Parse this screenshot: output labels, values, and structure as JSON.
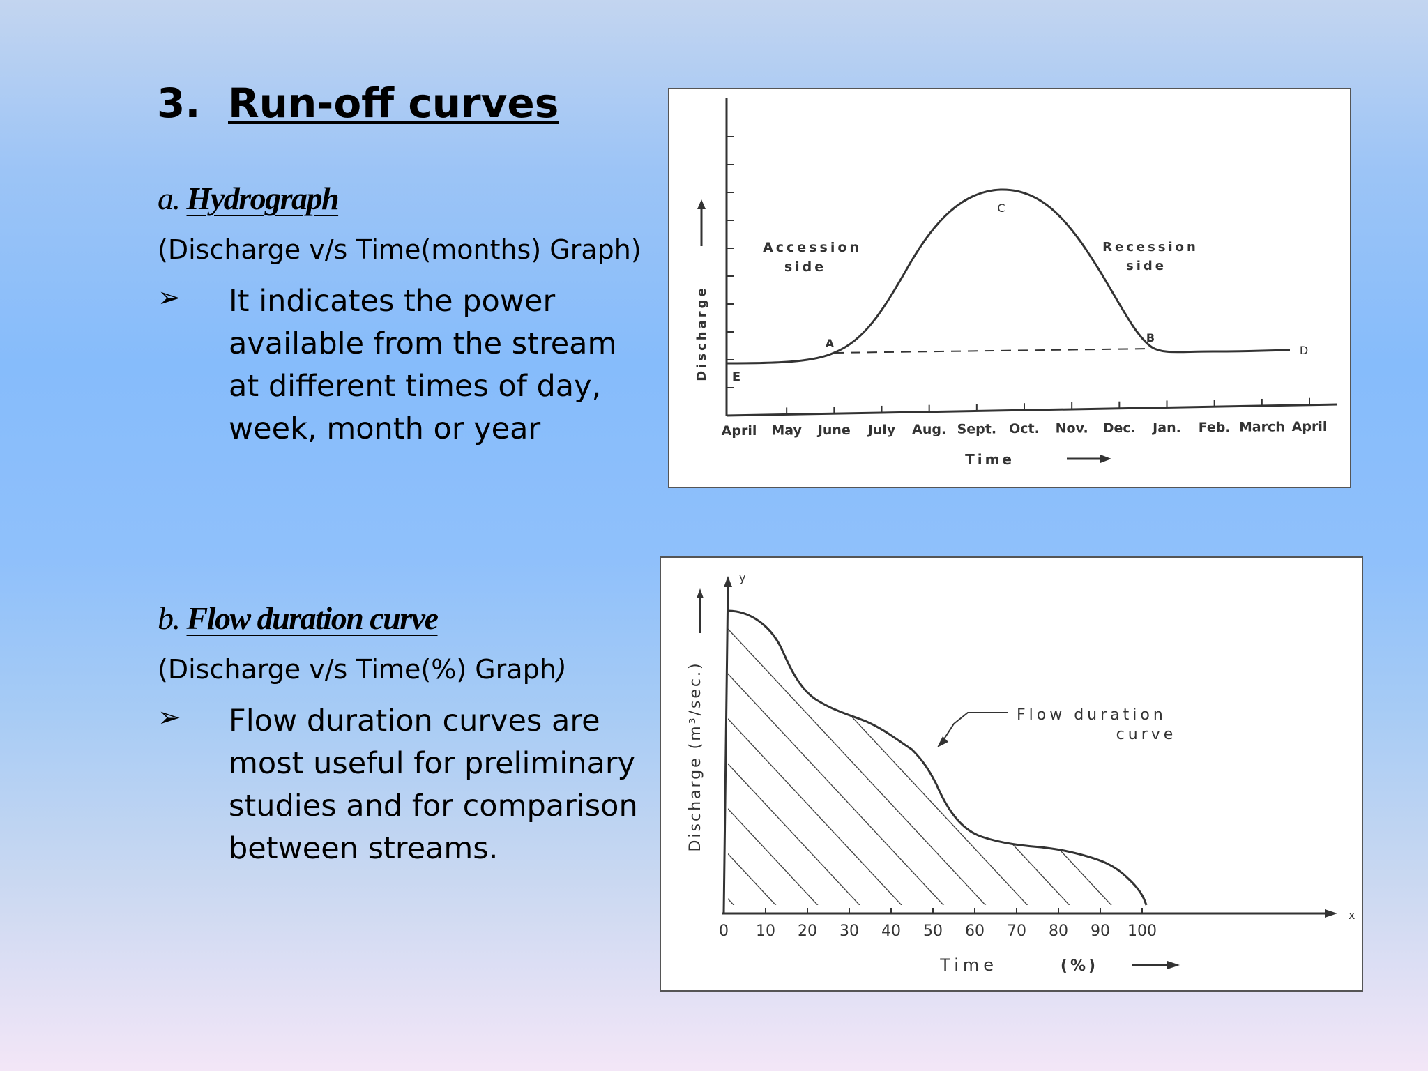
{
  "title": {
    "number": "3.",
    "text": "Run-off curves"
  },
  "section_a": {
    "prefix": "a.",
    "heading": "Hydrograph",
    "subtitle": "(Discharge v/s Time(months) Graph)",
    "bullet_symbol": "➢",
    "bullet_text": " It indicates the power available from the stream at different times of day, week, month or year"
  },
  "section_b": {
    "prefix": "b.",
    "heading": "Flow duration curve",
    "subtitle_main": "(Discharge v/s Time(%) Graph",
    "subtitle_close": ")",
    "bullet_symbol": "➢",
    "bullet_text": "Flow duration curves are most useful for preliminary studies and for comparison between streams."
  },
  "hydrograph": {
    "y_label": "Discharge",
    "x_label": "Time",
    "months": [
      "April",
      "May",
      "June",
      "July",
      "Aug.",
      "Sept.",
      "Oct.",
      "Nov.",
      "Dec.",
      "Jan.",
      "Feb.",
      "March",
      "April"
    ],
    "point_labels": {
      "a": "A",
      "b": "B",
      "c": "C",
      "d": "D",
      "e": "E"
    },
    "accession_label": [
      "Accession",
      "side"
    ],
    "recession_label": [
      "Recession",
      "side"
    ]
  },
  "flow_duration": {
    "y_label": "Discharge (m³/sec.)",
    "x_label": "Time",
    "x_unit": "(%)",
    "y_axis_symbol": "y",
    "x_axis_symbol": "x",
    "x_ticks": [
      "0",
      "10",
      "20",
      "30",
      "40",
      "50",
      "60",
      "70",
      "80",
      "90",
      "100"
    ],
    "curve_label": [
      "Flow duration",
      "curve"
    ]
  }
}
